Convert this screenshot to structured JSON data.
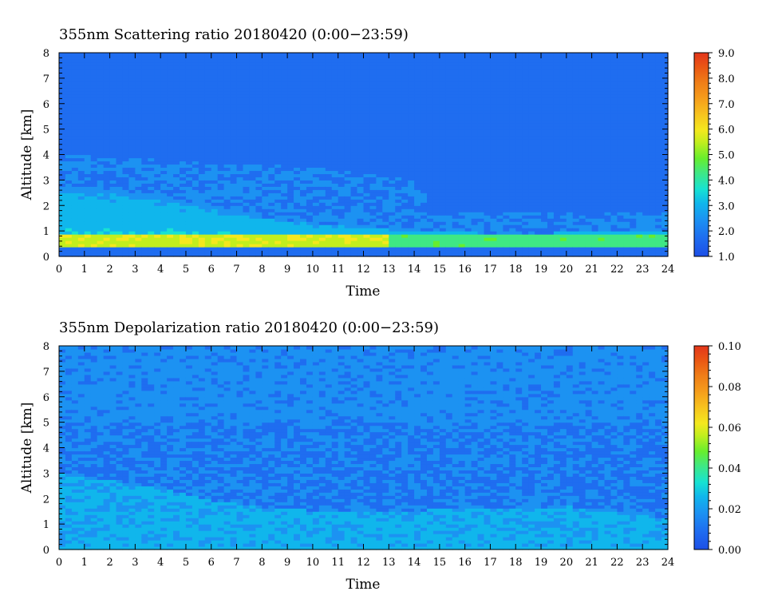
{
  "chart_data": [
    {
      "type": "heatmap",
      "title": "355nm Scattering ratio  20180420 (0:00−23:59)",
      "xlabel": "Time",
      "ylabel": "Altitude [km]",
      "xlim": [
        0,
        24
      ],
      "ylim": [
        0,
        8
      ],
      "x_ticks": [
        "0",
        "1",
        "2",
        "3",
        "4",
        "5",
        "6",
        "7",
        "8",
        "9",
        "10",
        "11",
        "12",
        "13",
        "14",
        "15",
        "16",
        "17",
        "18",
        "19",
        "20",
        "21",
        "22",
        "23",
        "24"
      ],
      "y_ticks": [
        "0",
        "1",
        "2",
        "3",
        "4",
        "5",
        "6",
        "7",
        "8"
      ],
      "colorbar": {
        "min": 1.0,
        "max": 9.0,
        "ticks": [
          "1.0",
          "2.0",
          "3.0",
          "4.0",
          "5.0",
          "6.0",
          "7.0",
          "8.0",
          "9.0"
        ],
        "colors": [
          "#1d4fe6",
          "#1f6df0",
          "#1c92f2",
          "#10b6ec",
          "#17e2d2",
          "#3fe884",
          "#66ee2e",
          "#c2ee1e",
          "#f4e81e",
          "#f7c21e",
          "#f59b1b",
          "#ef7b17",
          "#ea5614",
          "#e3361b"
        ]
      },
      "features": {
        "background_value": 1.8,
        "boundary_layer_top_km": [
          {
            "time": 0,
            "altitude": 2.8
          },
          {
            "time": 2,
            "altitude": 2.65
          },
          {
            "time": 4,
            "altitude": 2.4
          },
          {
            "time": 6,
            "altitude": 2.0
          },
          {
            "time": 8,
            "altitude": 1.55
          },
          {
            "time": 10,
            "altitude": 1.3
          },
          {
            "time": 12,
            "altitude": 1.15
          },
          {
            "time": 14,
            "altitude": 1.0
          },
          {
            "time": 16,
            "altitude": 0.95
          },
          {
            "time": 18,
            "altitude": 0.9
          },
          {
            "time": 20,
            "altitude": 0.95
          },
          {
            "time": 22,
            "altitude": 0.95
          },
          {
            "time": 24,
            "altitude": 0.95
          }
        ],
        "residual_layer_top_km": [
          {
            "time": 0,
            "altitude": 4.0
          },
          {
            "time": 6,
            "altitude": 3.7
          },
          {
            "time": 10,
            "altitude": 3.5
          },
          {
            "time": 14,
            "altitude": 3.0
          },
          {
            "time": 15,
            "altitude": 1.7
          },
          {
            "time": 24,
            "altitude": 1.7
          }
        ],
        "surface_layer": {
          "bottom_km": 0.35,
          "top_km": 0.85,
          "peak_value": 5.5
        }
      }
    },
    {
      "type": "heatmap",
      "title": "355nm Depolarization ratio  20180420 (0:00−23:59)",
      "xlabel": "Time",
      "ylabel": "Altitude [km]",
      "xlim": [
        0,
        24
      ],
      "ylim": [
        0,
        8
      ],
      "x_ticks": [
        "0",
        "1",
        "2",
        "3",
        "4",
        "5",
        "6",
        "7",
        "8",
        "9",
        "10",
        "11",
        "12",
        "13",
        "14",
        "15",
        "16",
        "17",
        "18",
        "19",
        "20",
        "21",
        "22",
        "23",
        "24"
      ],
      "y_ticks": [
        "0",
        "1",
        "2",
        "3",
        "4",
        "5",
        "6",
        "7",
        "8"
      ],
      "colorbar": {
        "min": 0.0,
        "max": 0.1,
        "ticks": [
          "0.00",
          "0.02",
          "0.04",
          "0.06",
          "0.08",
          "0.10"
        ],
        "colors": [
          "#1d4fe6",
          "#1f6df0",
          "#1c92f2",
          "#10b6ec",
          "#17e2d2",
          "#3fe884",
          "#66ee2e",
          "#c2ee1e",
          "#f4e81e",
          "#f7c21e",
          "#f59b1b",
          "#ef7b17",
          "#ea5614",
          "#e3361b"
        ]
      },
      "features": {
        "background_value": 0.014,
        "boundary_layer_top_km": [
          {
            "time": 0,
            "altitude": 3.0
          },
          {
            "time": 2,
            "altitude": 2.75
          },
          {
            "time": 4,
            "altitude": 2.4
          },
          {
            "time": 6,
            "altitude": 1.95
          },
          {
            "time": 8,
            "altitude": 1.65
          },
          {
            "time": 10,
            "altitude": 1.55
          },
          {
            "time": 12,
            "altitude": 1.5
          },
          {
            "time": 14,
            "altitude": 1.55
          },
          {
            "time": 16,
            "altitude": 1.6
          },
          {
            "time": 18,
            "altitude": 1.65
          },
          {
            "time": 20,
            "altitude": 1.7
          },
          {
            "time": 22,
            "altitude": 1.55
          },
          {
            "time": 24,
            "altitude": 1.2
          }
        ],
        "aerosol_band_value": 0.022
      }
    }
  ]
}
